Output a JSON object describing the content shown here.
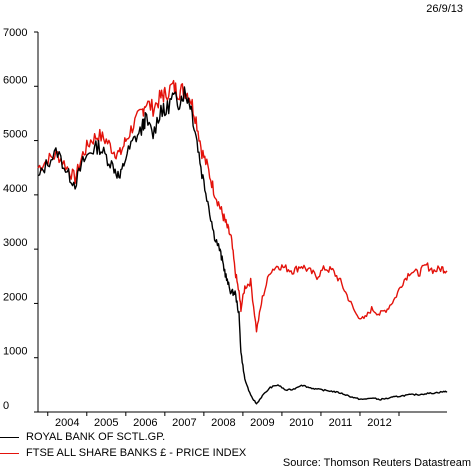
{
  "date_stamp": "26/9/13",
  "source_note": "Source: Thomson Reuters Datastream",
  "colors": {
    "rbs": "#000000",
    "ftse": "#e3120b"
  },
  "chart_data": {
    "type": "line",
    "title": "",
    "xlabel": "",
    "ylabel": "",
    "xlim": [
      2003.25,
      2013.73
    ],
    "ylim": [
      0,
      7000
    ],
    "yticks": [
      0,
      1000,
      2000,
      3000,
      4000,
      5000,
      6000,
      7000
    ],
    "x_tick_labels": [
      "2004",
      "2005",
      "2006",
      "2007",
      "2008",
      "2009",
      "2010",
      "2011",
      "2012"
    ],
    "x_label_positions": [
      2004.0,
      2005.0,
      2006.0,
      2007.0,
      2008.0,
      2009.0,
      2010.0,
      2011.0,
      2012.0
    ],
    "grid": false,
    "legend_position": "bottom-left",
    "series": [
      {
        "name": "ROYAL BANK OF SCTL.GP.",
        "color": "#000000",
        "x": [
          2003.25,
          2003.5,
          2003.75,
          2004.0,
          2004.2,
          2004.4,
          2004.6,
          2004.8,
          2005.0,
          2005.2,
          2005.35,
          2005.5,
          2005.7,
          2005.9,
          2006.0,
          2006.2,
          2006.4,
          2006.5,
          2006.7,
          2006.85,
          2007.0,
          2007.15,
          2007.3,
          2007.45,
          2007.6,
          2007.75,
          2007.9,
          2008.0,
          2008.1,
          2008.2,
          2008.3,
          2008.4,
          2008.45,
          2008.55,
          2008.7,
          2008.85,
          2009.0,
          2009.2,
          2009.4,
          2009.6,
          2009.8,
          2010.0,
          2010.2,
          2010.4,
          2010.6,
          2010.8,
          2011.0,
          2011.2,
          2011.4,
          2011.6,
          2011.8,
          2012.0,
          2012.2,
          2012.4,
          2012.6,
          2012.8,
          2013.0,
          2013.2,
          2013.4,
          2013.6,
          2013.73
        ],
        "values": [
          4300,
          4600,
          4800,
          4400,
          4200,
          4600,
          4800,
          4900,
          4700,
          4500,
          4300,
          4700,
          5000,
          5200,
          5400,
          5100,
          5600,
          5500,
          5800,
          5700,
          5900,
          5700,
          5100,
          4400,
          3900,
          3300,
          3000,
          2700,
          2400,
          2200,
          2200,
          1800,
          1100,
          600,
          300,
          150,
          300,
          450,
          500,
          400,
          420,
          500,
          450,
          420,
          400,
          380,
          350,
          300,
          250,
          230,
          260,
          230,
          250,
          280,
          300,
          320,
          320,
          340,
          350,
          370,
          380
        ]
      },
      {
        "name": "FTSE ALL SHARE BANKS £ - PRICE INDEX",
        "color": "#e3120b",
        "x": [
          2003.25,
          2003.5,
          2003.75,
          2004.0,
          2004.2,
          2004.4,
          2004.6,
          2004.8,
          2005.0,
          2005.2,
          2005.35,
          2005.5,
          2005.7,
          2005.9,
          2006.0,
          2006.2,
          2006.4,
          2006.5,
          2006.7,
          2006.85,
          2007.0,
          2007.15,
          2007.3,
          2007.45,
          2007.6,
          2007.75,
          2007.9,
          2008.0,
          2008.1,
          2008.2,
          2008.3,
          2008.4,
          2008.45,
          2008.55,
          2008.7,
          2008.85,
          2009.0,
          2009.2,
          2009.4,
          2009.6,
          2009.8,
          2010.0,
          2010.2,
          2010.4,
          2010.6,
          2010.8,
          2011.0,
          2011.2,
          2011.4,
          2011.6,
          2011.8,
          2012.0,
          2012.2,
          2012.4,
          2012.6,
          2012.8,
          2013.0,
          2013.2,
          2013.4,
          2013.6,
          2013.73
        ],
        "values": [
          4500,
          4650,
          4750,
          4500,
          4300,
          4750,
          5000,
          5100,
          5000,
          4800,
          4750,
          5000,
          5300,
          5500,
          5700,
          5600,
          5800,
          5850,
          6000,
          5900,
          5950,
          5800,
          5400,
          4800,
          4500,
          4100,
          3800,
          3600,
          3400,
          3200,
          2600,
          2200,
          1900,
          2300,
          2400,
          1500,
          2100,
          2600,
          2700,
          2650,
          2600,
          2700,
          2600,
          2500,
          2650,
          2600,
          2400,
          2100,
          1800,
          1700,
          1900,
          1800,
          1900,
          2100,
          2400,
          2600,
          2550,
          2700,
          2600,
          2650,
          2600
        ]
      }
    ]
  }
}
